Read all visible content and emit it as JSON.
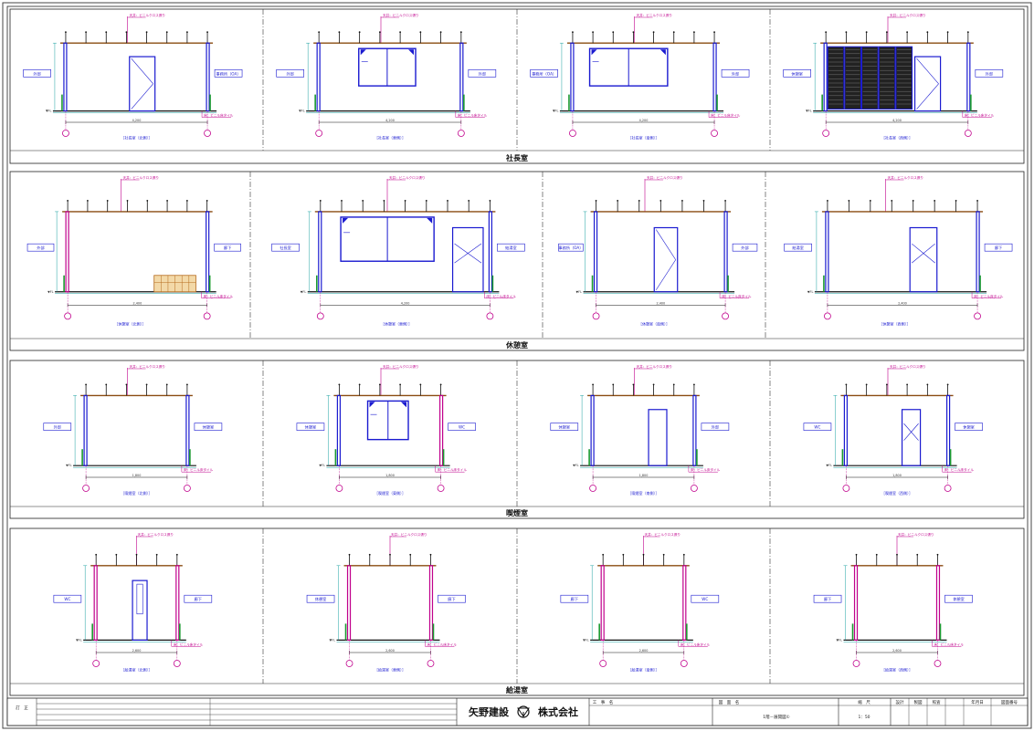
{
  "sections": [
    {
      "title": "社長室",
      "panels": [
        {
          "caption": "［社長室（北側）］",
          "left_room": "外部",
          "right_room": "事務所（OA）",
          "door": "cab",
          "window": null
        },
        {
          "caption": "［社長室（東側）］",
          "left_room": "外部",
          "right_room": "外部",
          "door": null,
          "window": "small"
        },
        {
          "caption": "［社長室（南側）］",
          "left_room": "事務所（OA）",
          "right_room": "外部",
          "door": null,
          "window": "wide"
        },
        {
          "caption": "［社長室（西側）］",
          "left_room": "休憩室",
          "right_room": "外部",
          "door": "louver",
          "window": null
        }
      ]
    },
    {
      "title": "休憩室",
      "panels": [
        {
          "caption": "［休憩室（北側）］",
          "left_room": "外部",
          "right_room": "廊下",
          "door": null,
          "window": null,
          "furniture": true
        },
        {
          "caption": "［休憩室（東側）］",
          "left_room": "社長室",
          "right_room": "給湯室",
          "door": "side",
          "window": "wide"
        },
        {
          "caption": "［休憩室（南側）］",
          "left_room": "事務所（OA）",
          "right_room": "外部",
          "door": "cab",
          "window": null
        },
        {
          "caption": "［休憩室（西側）］",
          "left_room": "給湯室",
          "right_room": "廊下",
          "door": "cross",
          "window": null
        }
      ]
    },
    {
      "title": "喫煙室",
      "panels": [
        {
          "caption": "［喫煙室（北側）］",
          "left_room": "外部",
          "right_room": "休憩室",
          "door": null,
          "window": null
        },
        {
          "caption": "［喫煙室（東側）］",
          "left_room": "休憩室",
          "right_room": "WC",
          "door": null,
          "window": "small"
        },
        {
          "caption": "［喫煙室（南側）］",
          "left_room": "休憩室",
          "right_room": "外部",
          "door": "plain",
          "window": null
        },
        {
          "caption": "［喫煙室（西側）］",
          "left_room": "WC",
          "right_room": "休憩室",
          "door": "cross",
          "window": null
        }
      ]
    },
    {
      "title": "給湯室",
      "panels": [
        {
          "caption": "［給湯室（北側）］",
          "left_room": "WC",
          "right_room": "廊下",
          "door": "glass",
          "window": null
        },
        {
          "caption": "［給湯室（東側）］",
          "left_room": "休憩室",
          "right_room": "廊下",
          "door": null,
          "window": null
        },
        {
          "caption": "［給湯室（南側）］",
          "left_room": "廊下",
          "right_room": "WC",
          "door": null,
          "window": null
        },
        {
          "caption": "［給湯室（西側）］",
          "left_room": "廊下",
          "right_room": "休憩室",
          "door": null,
          "window": null
        }
      ]
    }
  ],
  "title_block": {
    "revision_label": "訂　正",
    "company": "矢野建設",
    "company_suffix": "株式会社",
    "project_label": "工　事　名",
    "drawing_name_label": "図　面　名",
    "drawing_name": "1階－展開図①",
    "scale_label": "縮　尺",
    "scale": "1：50",
    "extra_labels": [
      "設計",
      "製図",
      "照査",
      "年月日",
      "図面番号"
    ]
  },
  "notes": {
    "ceiling": "天井：ビニルクロス張り",
    "wall": "壁：ビニルクロス",
    "floor": "床：ビニル床タイル",
    "fl": "▼FL",
    "dim_a": "2,400",
    "dim_b": "4,200",
    "dim_c": "1,800",
    "dim_d": "2,600"
  }
}
